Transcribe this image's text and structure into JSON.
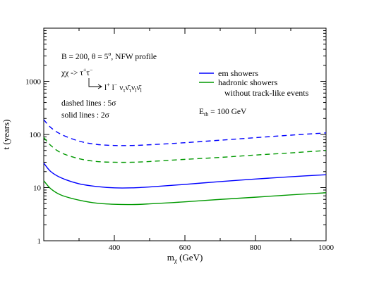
{
  "chart_data": {
    "type": "line",
    "xlabel": "m_χ (GeV)",
    "ylabel": "t (years)",
    "xlim": [
      200,
      1000
    ],
    "ylim": [
      1,
      10000
    ],
    "yscale": "log",
    "x_ticks": [
      400,
      600,
      800,
      1000
    ],
    "y_ticks": [
      {
        "value": 1,
        "label": "1"
      },
      {
        "value": 10,
        "label": "10"
      },
      {
        "value": 100,
        "label": "100"
      },
      {
        "value": 1000,
        "label": "1000"
      }
    ],
    "annotations": {
      "params": "B = 200, θ = 5°, NFW profile",
      "channel": "χχ -> τ⁺τ⁻",
      "decay": "l⁺ l⁻ ν_τ ν̄_τ ν_l ν̄_l",
      "dashed": "dashed lines : 5σ",
      "solid": "solid lines : 2σ",
      "threshold": "E_th = 100 GeV"
    },
    "legend": {
      "position": "top-right",
      "entries": [
        {
          "label": "em showers",
          "color": "#0000ff"
        },
        {
          "label": "hadronic showers",
          "label2": "without track-like events",
          "color": "#009900"
        }
      ]
    },
    "series": [
      {
        "group": "em showers",
        "style": "dashed",
        "significance": "5σ",
        "color": "#0000ff",
        "x": [
          200,
          220,
          250,
          300,
          350,
          400,
          450,
          500,
          600,
          700,
          800,
          900,
          1000
        ],
        "y": [
          190,
          135,
          100,
          75,
          65,
          62,
          62,
          64,
          70,
          78,
          87,
          97,
          107
        ]
      },
      {
        "group": "hadronic showers",
        "style": "dashed",
        "significance": "5σ",
        "color": "#009900",
        "x": [
          200,
          220,
          250,
          300,
          350,
          400,
          450,
          500,
          600,
          700,
          800,
          900,
          1000
        ],
        "y": [
          88,
          62,
          45,
          35,
          31,
          30,
          30,
          31,
          34,
          37,
          41,
          45,
          50
        ]
      },
      {
        "group": "em showers",
        "style": "solid",
        "significance": "2σ",
        "color": "#0000ff",
        "x": [
          200,
          220,
          250,
          300,
          350,
          400,
          450,
          500,
          600,
          700,
          800,
          900,
          1000
        ],
        "y": [
          29,
          20,
          15.2,
          11.8,
          10.5,
          9.9,
          9.9,
          10.3,
          11.5,
          13,
          14.5,
          16,
          17.5
        ]
      },
      {
        "group": "hadronic showers",
        "style": "solid",
        "significance": "2σ",
        "color": "#009900",
        "x": [
          200,
          220,
          250,
          300,
          350,
          400,
          450,
          500,
          600,
          700,
          800,
          900,
          1000
        ],
        "y": [
          13.5,
          9.5,
          7.2,
          5.8,
          5.1,
          4.85,
          4.8,
          4.95,
          5.4,
          6,
          6.6,
          7.3,
          8
        ]
      }
    ]
  }
}
